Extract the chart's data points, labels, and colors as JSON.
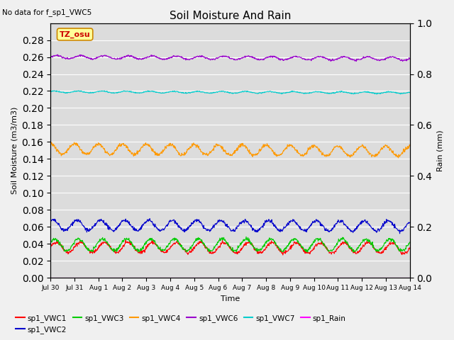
{
  "title": "Soil Moisture And Rain",
  "no_data_text": "No data for f_sp1_VWC5",
  "tz_label": "TZ_osu",
  "xlabel": "Time",
  "ylabel_left": "Soil Moisture (m3/m3)",
  "ylabel_right": "Rain (mm)",
  "ylim_left": [
    0.0,
    0.3
  ],
  "ylim_right": [
    0.0,
    1.0
  ],
  "yticks_left": [
    0.0,
    0.02,
    0.04,
    0.06,
    0.08,
    0.1,
    0.12,
    0.14,
    0.16,
    0.18,
    0.2,
    0.22,
    0.24,
    0.26,
    0.28
  ],
  "yticks_right": [
    0.0,
    0.2,
    0.4,
    0.6,
    0.8,
    1.0
  ],
  "n_points": 1000,
  "start_day": 0,
  "end_day": 15,
  "xtick_positions": [
    0,
    1,
    2,
    3,
    4,
    5,
    6,
    7,
    8,
    9,
    10,
    11,
    12,
    13,
    14,
    15
  ],
  "xtick_labels": [
    "Jul 30",
    "Jul 31",
    "Aug 1",
    "Aug 2",
    "Aug 3",
    "Aug 4",
    "Aug 5",
    "Aug 6",
    "Aug 7",
    "Aug 8",
    "Aug 9",
    "Aug 10",
    "Aug 11",
    "Aug 12",
    "Aug 13",
    "Aug 14"
  ],
  "series": {
    "sp1_VWC1": {
      "color": "#ff0000",
      "base": 0.036,
      "amp": 0.006,
      "trend": -0.001,
      "period": 1.0,
      "phase": 0.0,
      "noise": 0.001
    },
    "sp1_VWC2": {
      "color": "#0000cc",
      "base": 0.062,
      "amp": 0.006,
      "trend": -0.001,
      "period": 1.0,
      "phase": 0.3,
      "noise": 0.001
    },
    "sp1_VWC3": {
      "color": "#00cc00",
      "base": 0.039,
      "amp": 0.007,
      "trend": 0.0,
      "period": 1.0,
      "phase": 0.15,
      "noise": 0.001
    },
    "sp1_VWC4": {
      "color": "#ff9900",
      "base": 0.152,
      "amp": 0.006,
      "trend": -0.003,
      "period": 1.0,
      "phase": 0.5,
      "noise": 0.001
    },
    "sp1_VWC6": {
      "color": "#9900cc",
      "base": 0.26,
      "amp": 0.002,
      "trend": -0.002,
      "period": 1.0,
      "phase": 0.0,
      "noise": 0.0005
    },
    "sp1_VWC7": {
      "color": "#00cccc",
      "base": 0.219,
      "amp": 0.001,
      "trend": -0.001,
      "period": 1.0,
      "phase": 0.2,
      "noise": 0.0003
    },
    "sp1_Rain": {
      "color": "#ff00ff",
      "base": 0.0,
      "amp": 0.0,
      "trend": 0.0,
      "period": 1.0,
      "phase": 0.0,
      "noise": 0.0
    }
  },
  "background_color": "#dcdcdc",
  "grid_color": "#ffffff",
  "linewidth": 0.8,
  "figsize": [
    6.4,
    4.8
  ],
  "dpi": 100
}
